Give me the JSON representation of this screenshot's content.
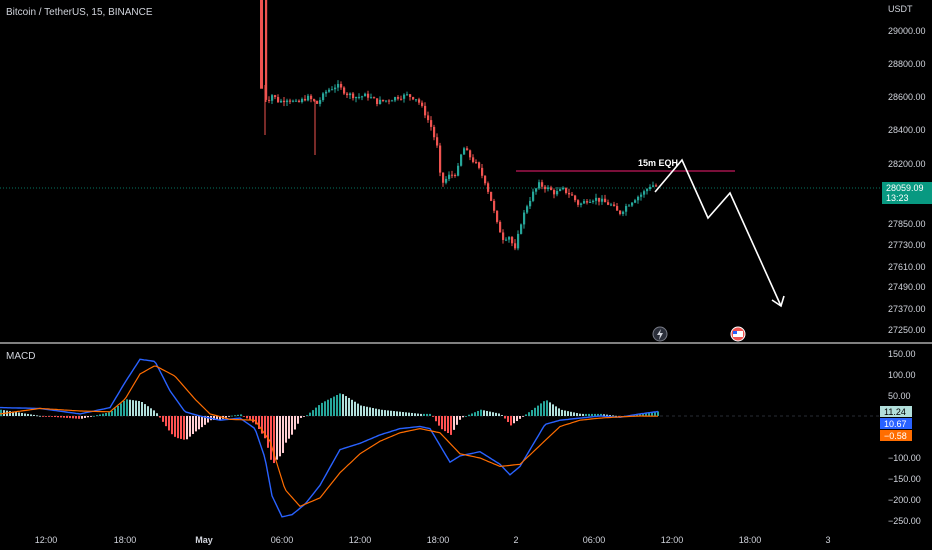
{
  "header": {
    "title": "Bitcoin / TetherUS, 15, BINANCE"
  },
  "price_axis": {
    "currency": "USDT",
    "ticks": [
      "29000.00",
      "28800.00",
      "28600.00",
      "28400.00",
      "28200.00",
      "27850.00",
      "27730.00",
      "27610.00",
      "27490.00",
      "27370.00",
      "27250.00"
    ],
    "last_price": "28059.09",
    "countdown": "13:23",
    "last_color": "#089981"
  },
  "macd_panel": {
    "title": "MACD",
    "ticks": [
      "150.00",
      "100.00",
      "50.00",
      "−100.00",
      "−150.00",
      "−200.00",
      "−250.00"
    ],
    "badges": [
      {
        "value": "11.24",
        "color": "#b2dfdb",
        "text_color": "#000000"
      },
      {
        "value": "10.67",
        "color": "#2962ff",
        "text_color": "#ffffff"
      },
      {
        "value": "−0.58",
        "color": "#ff6d00",
        "text_color": "#ffffff"
      }
    ]
  },
  "time_axis": [
    "12:00",
    "18:00",
    "May",
    "06:00",
    "12:00",
    "18:00",
    "2",
    "06:00",
    "12:00",
    "18:00",
    "3"
  ],
  "annotation": {
    "text": "15m EQH"
  },
  "icons": [
    "lightning-icon",
    "flag-icon"
  ],
  "chart_data": {
    "type": "candlestick",
    "interval": "15",
    "exchange": "BINANCE",
    "symbol": "Bitcoin / TetherUS",
    "eqh_level": 28160,
    "projection_path": [
      28060,
      28200,
      27890,
      28040,
      27330
    ],
    "macd": {
      "macd_line": 10.67,
      "signal_line": -0.58,
      "histogram": 11.24
    },
    "candle_colors": {
      "up": "#26a69a",
      "down": "#ef5350"
    }
  }
}
